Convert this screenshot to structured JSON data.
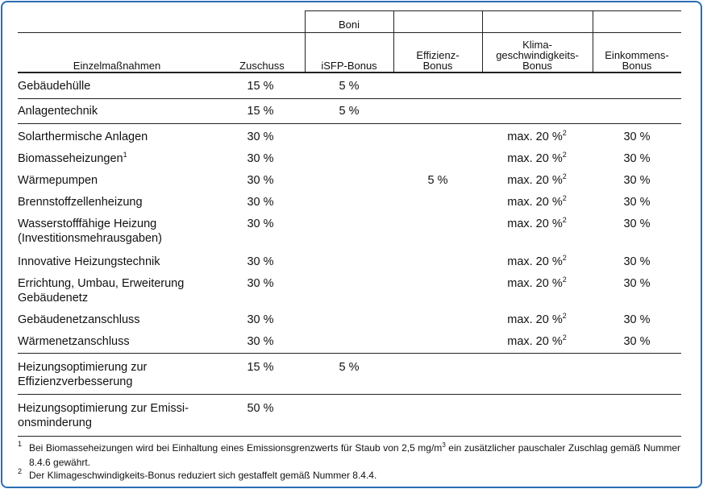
{
  "header": {
    "group": "Boni",
    "columns": [
      [
        "Einzelmaßnahmen"
      ],
      [
        "Zuschuss"
      ],
      [
        "iSFP-Bonus"
      ],
      [
        "Effizienz-",
        "Bonus"
      ],
      [
        "Klima-",
        "geschwindigkeits-",
        "Bonus"
      ],
      [
        "Einkommens-",
        "Bonus"
      ]
    ]
  },
  "rows": [
    {
      "label": [
        "Gebäudehülle"
      ],
      "zuschuss": "15 %",
      "isfp": "5 %"
    },
    {
      "label": [
        "Anlagentechnik"
      ],
      "zuschuss": "15 %",
      "isfp": "5 %"
    },
    {
      "label": [
        "Solarthermische Anlagen"
      ],
      "zuschuss": "30 %",
      "klima": {
        "text": "max. 20 %",
        "note": "2"
      },
      "einkommen": "30 %"
    },
    {
      "label": [
        "Biomasseheizungen"
      ],
      "label_note": "1",
      "zuschuss": "30 %",
      "klima": {
        "text": "max. 20 %",
        "note": "2"
      },
      "einkommen": "30 %"
    },
    {
      "label": [
        "Wärmepumpen"
      ],
      "zuschuss": "30 %",
      "effizienz": "5 %",
      "klima": {
        "text": "max. 20 %",
        "note": "2"
      },
      "einkommen": "30 %"
    },
    {
      "label": [
        "Brennstoffzellenheizung"
      ],
      "zuschuss": "30 %",
      "klima": {
        "text": "max. 20 %",
        "note": "2"
      },
      "einkommen": "30 %"
    },
    {
      "label": [
        "Wasserstofffähige Heizung",
        "(Investitionsmehrausgaben)"
      ],
      "zuschuss": "30 %",
      "klima": {
        "text": "max. 20 %",
        "note": "2"
      },
      "einkommen": "30 %"
    },
    {
      "label": [
        "Innovative Heizungstechnik"
      ],
      "zuschuss": "30 %",
      "klima": {
        "text": "max. 20 %",
        "note": "2"
      },
      "einkommen": "30 %"
    },
    {
      "label": [
        "Errichtung, Umbau, Erweiterung",
        "Gebäudenetz"
      ],
      "zuschuss": "30 %",
      "klima": {
        "text": "max. 20 %",
        "note": "2"
      },
      "einkommen": "30 %"
    },
    {
      "label": [
        "Gebäudenetzanschluss"
      ],
      "zuschuss": "30 %",
      "klima": {
        "text": "max. 20 %",
        "note": "2"
      },
      "einkommen": "30 %"
    },
    {
      "label": [
        "Wärmenetzanschluss"
      ],
      "zuschuss": "30 %",
      "klima": {
        "text": "max. 20 %",
        "note": "2"
      },
      "einkommen": "30 %"
    },
    {
      "label": [
        "Heizungsoptimierung zur",
        "Effizienzverbesserung"
      ],
      "zuschuss": "15 %",
      "isfp": "5 %"
    },
    {
      "label": [
        "Heizungsoptimierung zur Emissi-",
        "onsminderung"
      ],
      "zuschuss": "50 %"
    }
  ],
  "footnotes": [
    {
      "marker": "1",
      "text": "Bei Biomasseheizungen wird bei Einhaltung eines Emissionsgrenzwerts für Staub von 2,5 mg/m",
      "sup": "3",
      "text_after": " ein zusätzlicher pauschaler Zuschlag gemäß Nummer 8.4.6 gewährt."
    },
    {
      "marker": "2",
      "text": "Der Klimageschwindigkeits-Bonus reduziert sich gestaffelt gemäß Nummer 8.4.4."
    }
  ]
}
